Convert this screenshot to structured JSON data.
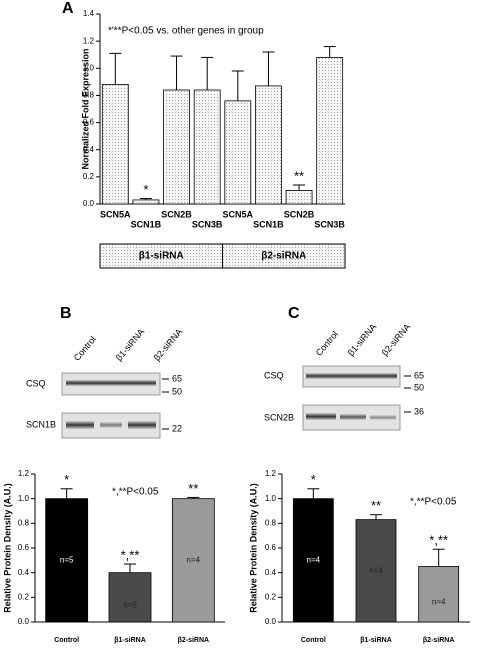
{
  "panels": [
    "A",
    "B",
    "C"
  ],
  "blots": [
    {
      "lanes": [
        "Control",
        "β1-siRNA",
        "β2-siRNA"
      ],
      "rows": [
        {
          "name": "CSQ",
          "markers": [
            "65",
            "50"
          ]
        },
        {
          "name": "SCN1B",
          "markers": [
            "22"
          ]
        }
      ]
    },
    {
      "lanes": [
        "Control",
        "β1-siRNA",
        "β2-siRNA"
      ],
      "rows": [
        {
          "name": "CSQ",
          "markers": [
            "65",
            "50"
          ]
        },
        {
          "name": "SCN2B",
          "markers": [
            "36"
          ]
        }
      ]
    }
  ],
  "chart_data": [
    {
      "type": "bar",
      "ylabel": "Normalized Fold Expression",
      "note": "*'**P<0.05 vs. other genes in group",
      "categories": [
        "SCN5A",
        "SCN1B",
        "SCN2B",
        "SCN3B",
        "SCN5A",
        "SCN1B",
        "SCN2B",
        "SCN3B"
      ],
      "values": [
        0.88,
        0.03,
        0.84,
        0.84,
        0.76,
        0.87,
        0.1,
        1.08
      ],
      "errors": [
        0.23,
        0.01,
        0.25,
        0.24,
        0.22,
        0.25,
        0.04,
        0.08
      ],
      "star_labels": [
        null,
        "*",
        null,
        null,
        null,
        null,
        "**",
        null
      ],
      "groups": [
        "β1-siRNA",
        "β2-siRNA"
      ],
      "color": "#f4f4f4",
      "pattern": "dots",
      "ylim": [
        0,
        1.4
      ],
      "yticks": [
        {
          "value": 0,
          "label": "0.0"
        },
        0.2,
        0.4,
        0.6,
        0.8,
        {
          "value": 1,
          "label": "1.0"
        },
        1.2,
        1.4
      ]
    },
    {
      "type": "bar",
      "ylabel": "Relative Protein Density (A.U.)",
      "note": "*,**P<0.05",
      "categories": [
        "Control",
        "β1-siRNA",
        "β2-siRNA"
      ],
      "values": [
        1.0,
        0.4,
        1.0
      ],
      "errors": [
        0.08,
        0.07,
        0.01
      ],
      "star_labels": [
        "*",
        "*,**",
        "**"
      ],
      "n_labels": [
        "n=5",
        "n=5",
        "n=4"
      ],
      "colors": [
        "#000000",
        "#4a4a4a",
        "#9a9a9a"
      ],
      "ylim": [
        0,
        1.2
      ],
      "yticks": [
        {
          "value": 0,
          "label": "0.0"
        },
        0.2,
        0.4,
        0.6,
        0.8,
        {
          "value": 1,
          "label": "1.0"
        },
        1.2
      ]
    },
    {
      "type": "bar",
      "ylabel": "Relative Protein Density (A.U.)",
      "note": "*,**P<0.05",
      "categories": [
        "Control",
        "β1-siRNA",
        "β2-siRNA"
      ],
      "values": [
        1.0,
        0.83,
        0.45
      ],
      "errors": [
        0.08,
        0.04,
        0.14
      ],
      "star_labels": [
        "*",
        "**",
        "*,**"
      ],
      "n_labels": [
        "n=4",
        "n=4",
        "n=4"
      ],
      "colors": [
        "#000000",
        "#4a4a4a",
        "#9a9a9a"
      ],
      "ylim": [
        0,
        1.2
      ],
      "yticks": [
        {
          "value": 0,
          "label": "0.0"
        },
        0.2,
        0.4,
        0.6,
        0.8,
        {
          "value": 1,
          "label": "1.0"
        },
        1.2
      ]
    }
  ]
}
